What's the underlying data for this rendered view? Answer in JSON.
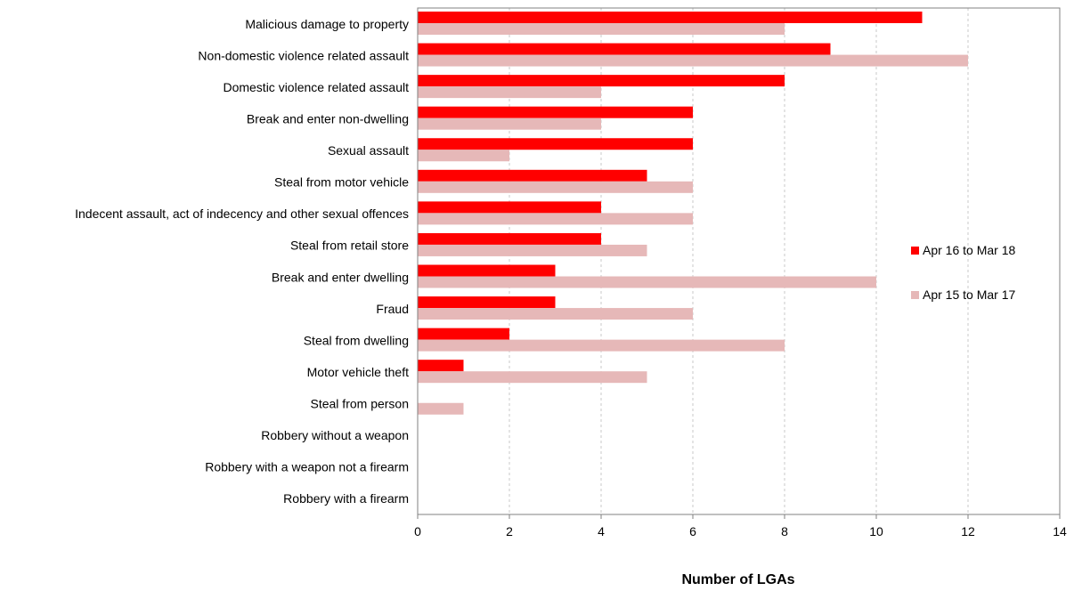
{
  "chart_data": {
    "type": "bar",
    "orientation": "horizontal",
    "categories": [
      "Malicious damage to property",
      "Non-domestic violence related assault",
      "Domestic violence related assault",
      "Break and enter non-dwelling",
      "Sexual assault",
      "Steal from motor vehicle",
      "Indecent assault, act of indecency and other sexual offences",
      "Steal from retail store",
      "Break and enter dwelling",
      "Fraud",
      "Steal from dwelling",
      "Motor vehicle theft",
      "Steal from person",
      "Robbery without a weapon",
      "Robbery with a weapon not a firearm",
      "Robbery with a firearm"
    ],
    "series": [
      {
        "name": "Apr 16 to Mar 18",
        "color": "#ff0000",
        "values": [
          11,
          9,
          8,
          6,
          6,
          5,
          4,
          4,
          3,
          3,
          2,
          1,
          0,
          0,
          0,
          0
        ]
      },
      {
        "name": "Apr 15 to Mar 17",
        "color": "#e6b8b8",
        "values": [
          8,
          12,
          4,
          4,
          2,
          6,
          6,
          5,
          10,
          6,
          8,
          5,
          1,
          0,
          0,
          0
        ]
      }
    ],
    "xlabel": "Number of LGAs",
    "ylabel": "",
    "xlim": [
      0,
      14
    ],
    "xticks": [
      0,
      2,
      4,
      6,
      8,
      10,
      12,
      14
    ],
    "grid": "vertical dashed",
    "legend_position": "right"
  }
}
